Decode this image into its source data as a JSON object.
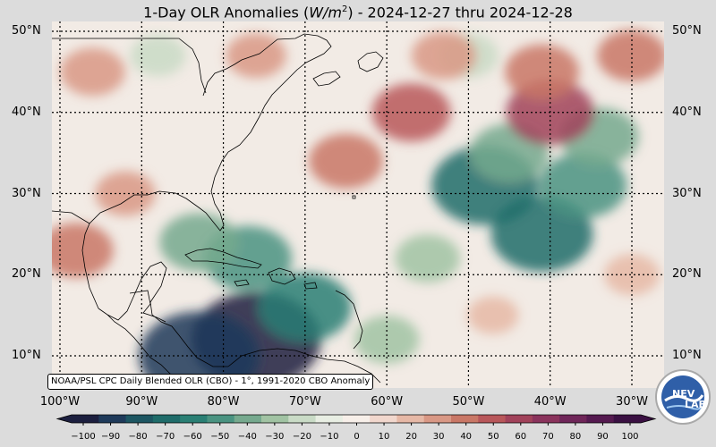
{
  "title": {
    "prefix": "1-Day OLR Anomalies (",
    "unit_base": "W/m",
    "unit_exp": "2",
    "suffix": ") - 2024-12-27 thru 2024-12-28"
  },
  "attribution": "NOAA/PSL CPC Daily Blended OLR (CBO) - 1°, 1991-2020 CBO Anomaly",
  "lat_labels": [
    "50°N",
    "40°N",
    "30°N",
    "20°N",
    "10°N"
  ],
  "lon_labels": [
    "100°W",
    "90°W",
    "80°W",
    "70°W",
    "60°W",
    "50°W",
    "40°W",
    "30°W"
  ],
  "colorbar": {
    "ticks": [
      "−100",
      "−90",
      "−80",
      "−70",
      "−60",
      "−50",
      "−40",
      "−30",
      "−20",
      "−10",
      "0",
      "10",
      "20",
      "30",
      "40",
      "50",
      "60",
      "70",
      "80",
      "90",
      "100"
    ],
    "colors": [
      "#1c1f3f",
      "#1e3a5a",
      "#1d5662",
      "#1f6c6a",
      "#2a7f74",
      "#4a9381",
      "#76a98e",
      "#a1c3a3",
      "#c9dbc6",
      "#e8eee3",
      "#f7efe9",
      "#f1d7cd",
      "#e6b8a6",
      "#d99885",
      "#c97766",
      "#b8575a",
      "#a1425a",
      "#8a335c",
      "#6f2659",
      "#551a50",
      "#3a1042"
    ]
  },
  "anomaly_blobs": [
    {
      "lon": -76,
      "lat": 12,
      "value": -100
    },
    {
      "lon": -83,
      "lat": 10,
      "value": -90
    },
    {
      "lon": -70,
      "lat": 16,
      "value": -60
    },
    {
      "lon": -77,
      "lat": 22,
      "value": -55
    },
    {
      "lon": -83,
      "lat": 24,
      "value": -45
    },
    {
      "lon": -60,
      "lat": 12,
      "value": -30
    },
    {
      "lon": -48,
      "lat": 31,
      "value": -75
    },
    {
      "lon": -41,
      "lat": 25,
      "value": -70
    },
    {
      "lon": -36,
      "lat": 31,
      "value": -55
    },
    {
      "lon": -45,
      "lat": 35,
      "value": -45
    },
    {
      "lon": -34,
      "lat": 37,
      "value": -45
    },
    {
      "lon": -55,
      "lat": 22,
      "value": -30
    },
    {
      "lon": -50,
      "lat": 47,
      "value": -25
    },
    {
      "lon": -88,
      "lat": 47,
      "value": -20
    },
    {
      "lon": -40,
      "lat": 40,
      "value": 55
    },
    {
      "lon": -41,
      "lat": 45,
      "value": 40
    },
    {
      "lon": -30,
      "lat": 47,
      "value": 35
    },
    {
      "lon": -65,
      "lat": 34,
      "value": 40
    },
    {
      "lon": -57,
      "lat": 40,
      "value": 45
    },
    {
      "lon": -53,
      "lat": 47,
      "value": 30
    },
    {
      "lon": -76,
      "lat": 47,
      "value": 25
    },
    {
      "lon": -98,
      "lat": 23,
      "value": 40
    },
    {
      "lon": -92,
      "lat": 30,
      "value": 25
    },
    {
      "lon": -96,
      "lat": 45,
      "value": 30
    },
    {
      "lon": -30,
      "lat": 20,
      "value": 20
    },
    {
      "lon": -47,
      "lat": 15,
      "value": 15
    }
  ]
}
